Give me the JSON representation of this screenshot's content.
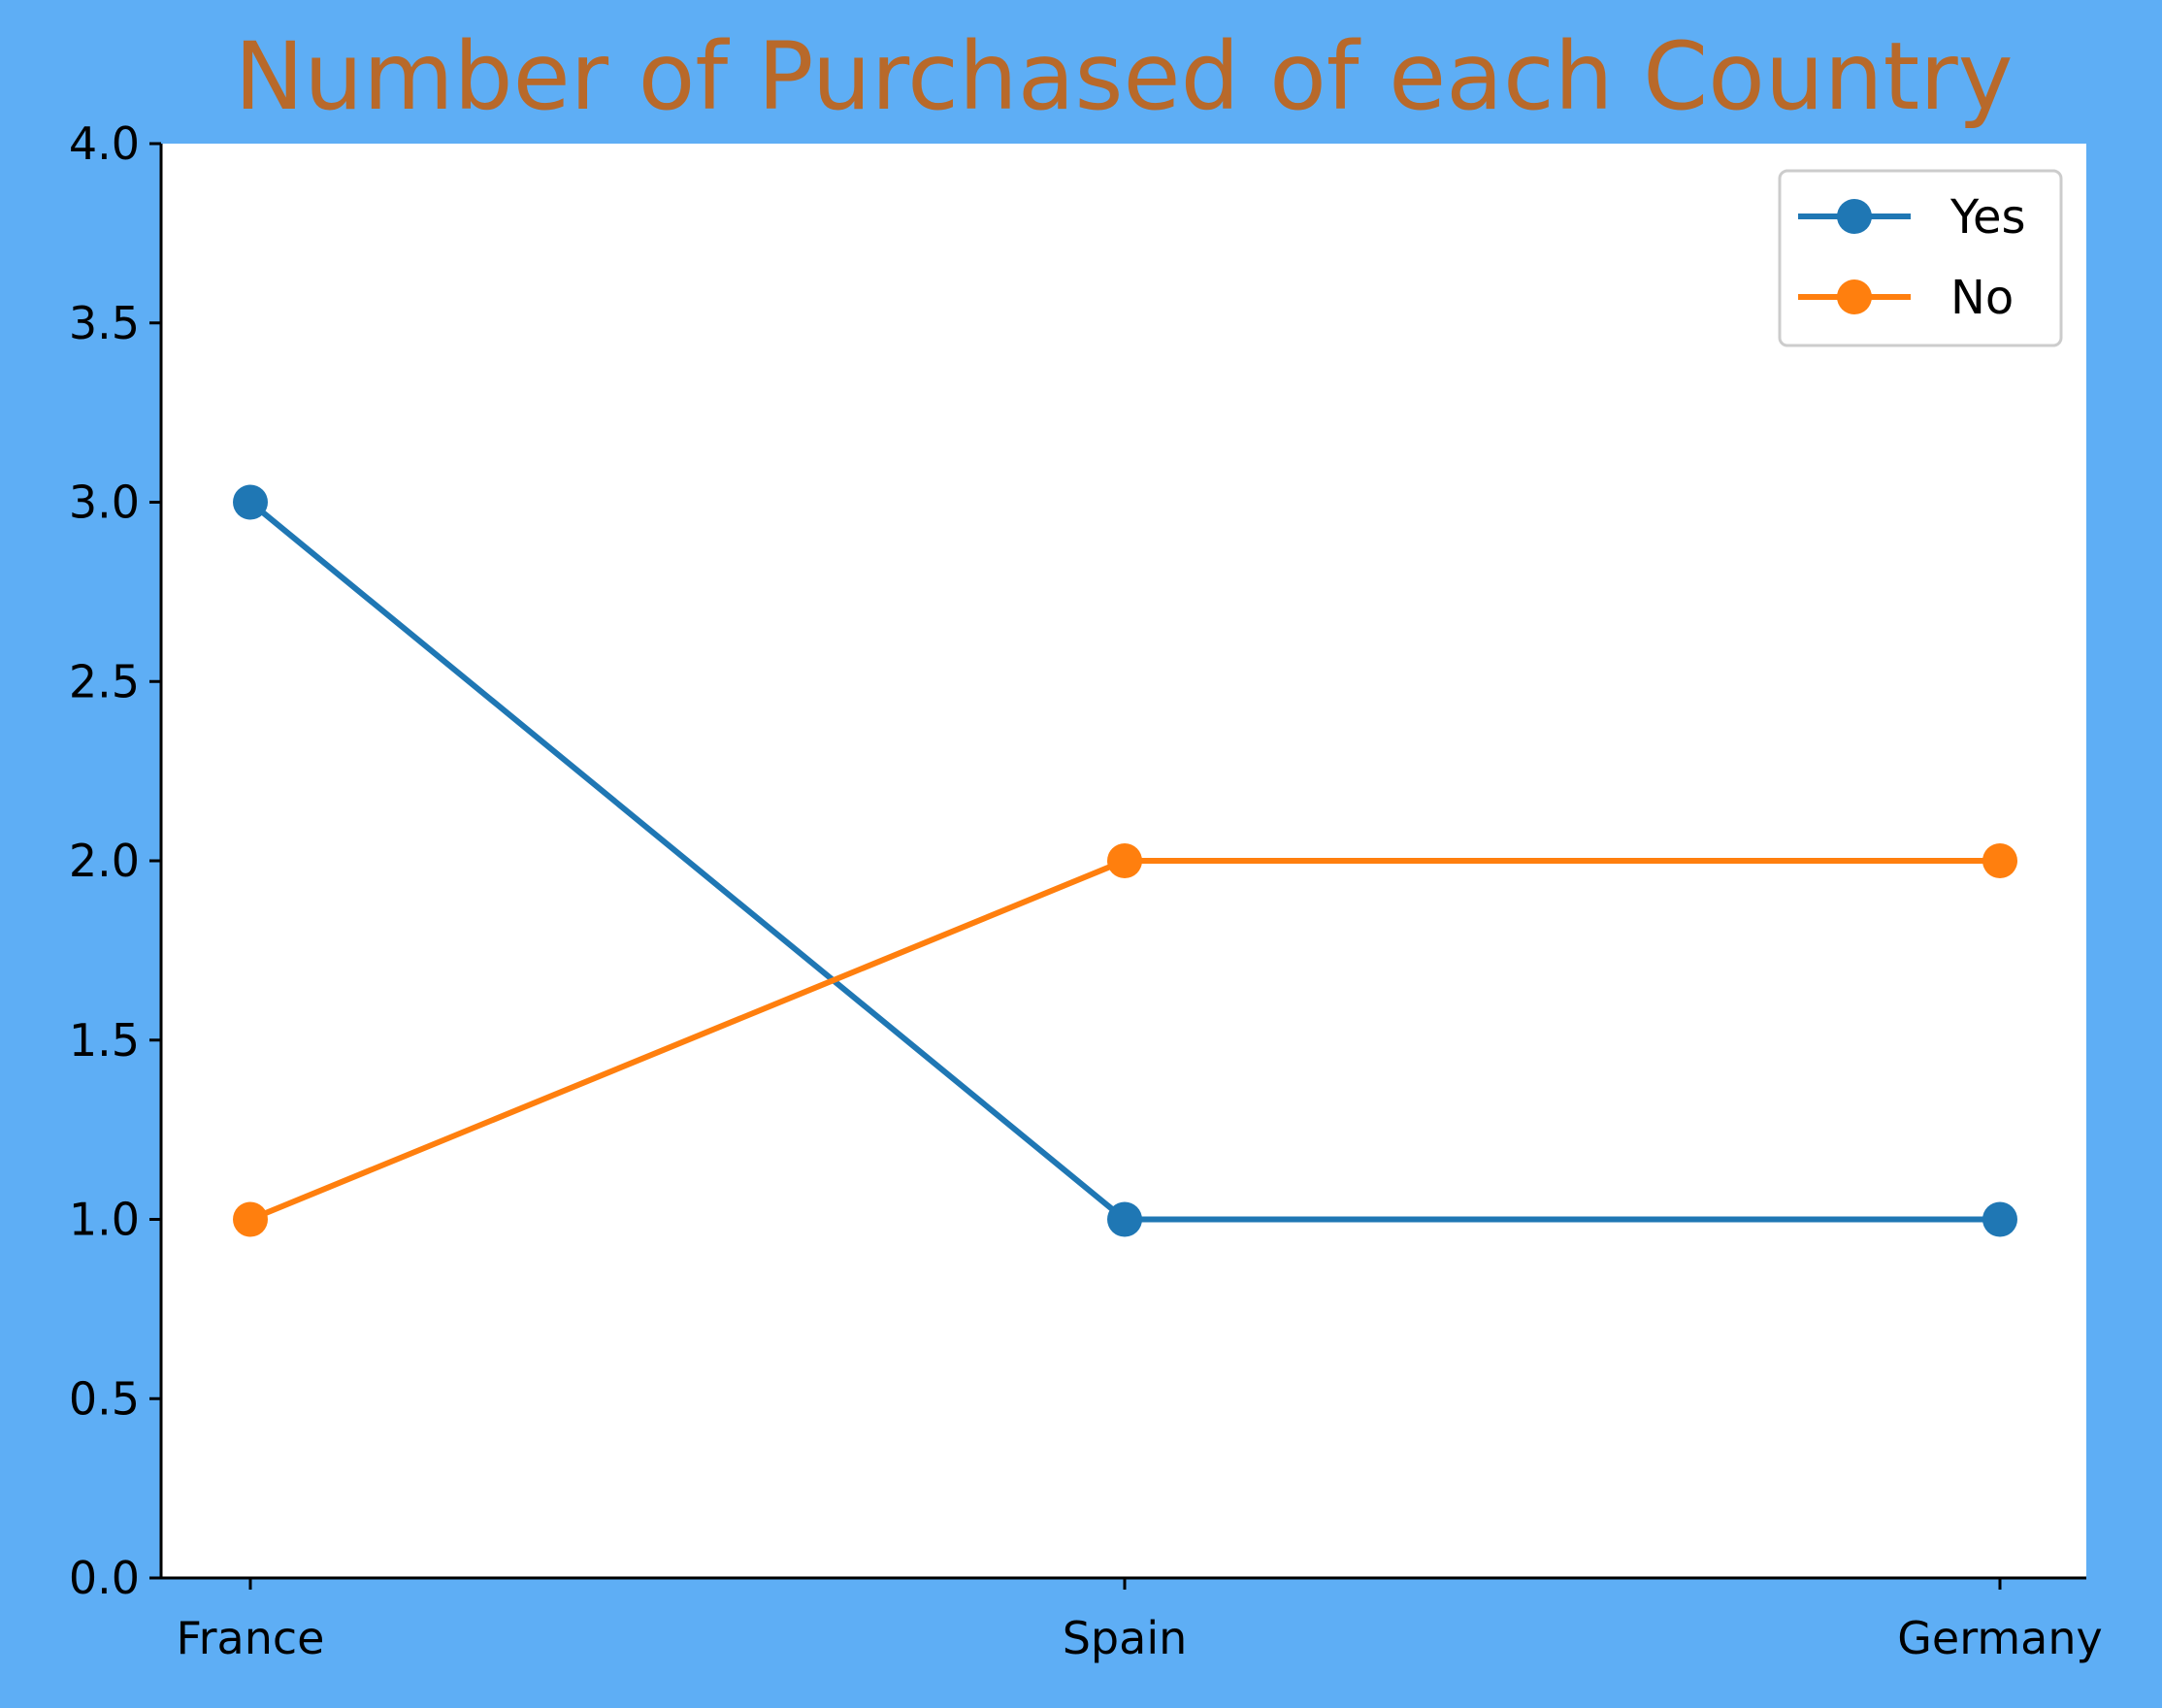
{
  "chart_data": {
    "type": "line",
    "title": "Number of Purchased of each Country",
    "xlabel": "",
    "ylabel": "",
    "categories": [
      "France",
      "Spain",
      "Germany"
    ],
    "series": [
      {
        "name": "Yes",
        "values": [
          3,
          1,
          1
        ],
        "color": "#1f77b4"
      },
      {
        "name": "No",
        "values": [
          1,
          2,
          2
        ],
        "color": "#ff7f0e"
      }
    ],
    "ylim": [
      0,
      4
    ],
    "yticks": [
      "0.0",
      "0.5",
      "1.0",
      "1.5",
      "2.0",
      "2.5",
      "3.0",
      "3.5",
      "4.0"
    ],
    "grid": false,
    "legend_position": "top-right"
  },
  "colors": {
    "background": "#5eaef5",
    "plot_background": "#ffffff",
    "title": "#b8692a"
  }
}
